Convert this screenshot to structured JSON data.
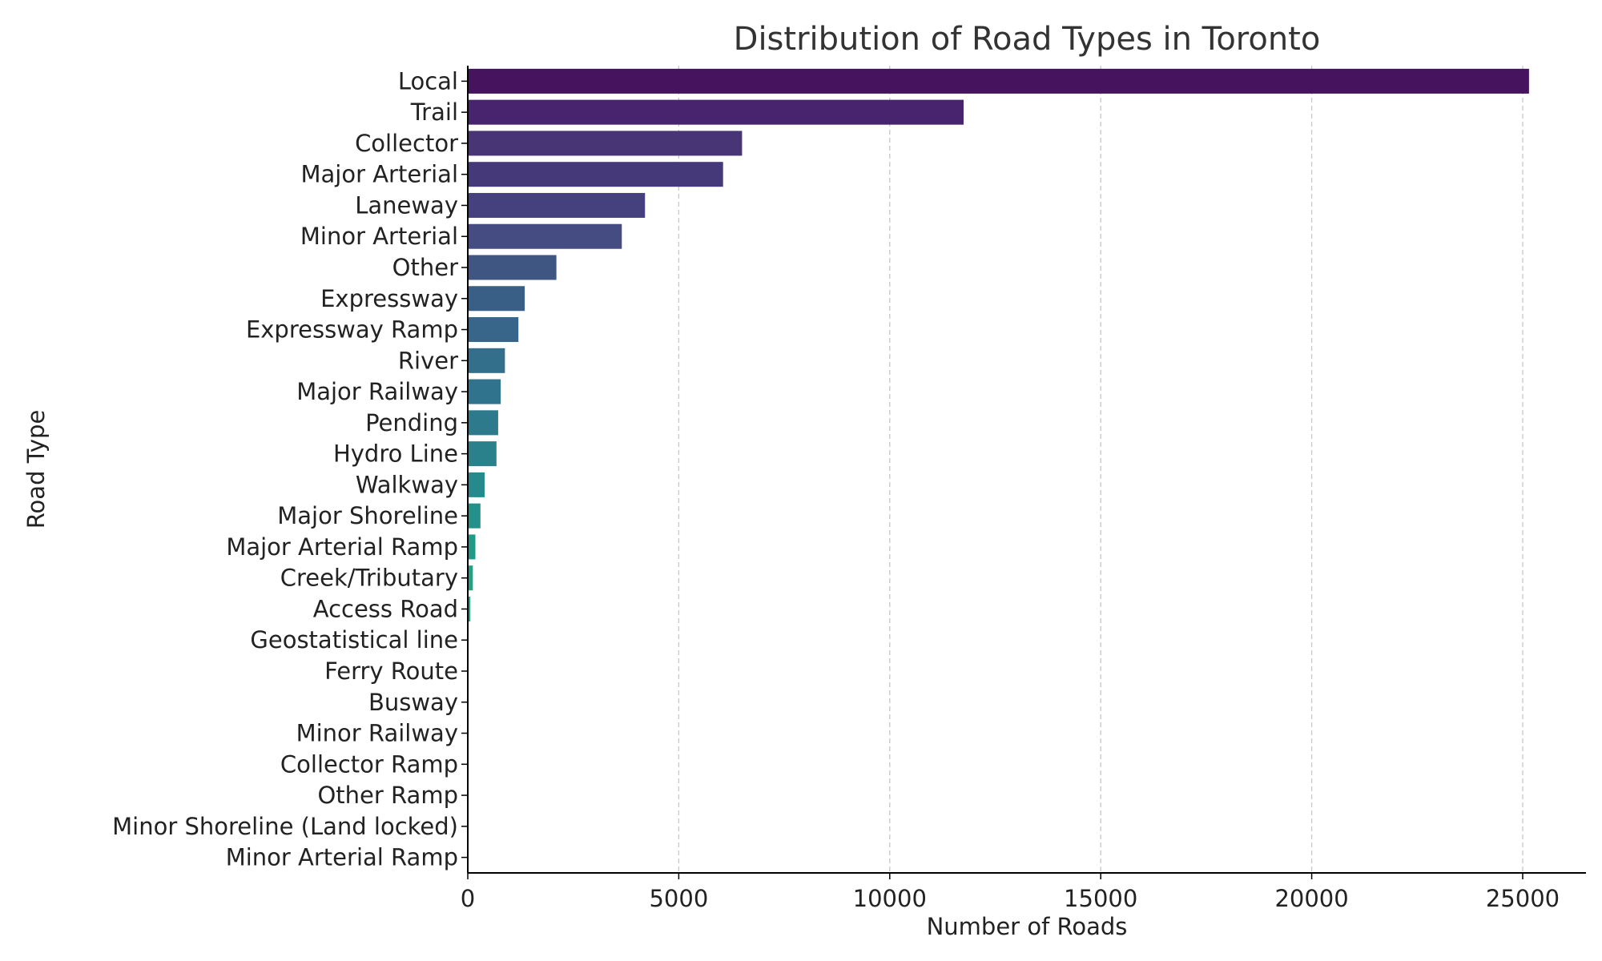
{
  "chart_data": {
    "type": "bar",
    "orientation": "horizontal",
    "title": "Distribution of Road Types in Toronto",
    "xlabel": "Number of Roads",
    "ylabel": "Road Type",
    "xlim": [
      0,
      26500
    ],
    "xticks": [
      0,
      5000,
      10000,
      15000,
      20000,
      25000
    ],
    "grid": "x-dashed",
    "palette": "viridis",
    "categories": [
      "Local",
      "Trail",
      "Collector",
      "Major Arterial",
      "Laneway",
      "Minor Arterial",
      "Other",
      "Expressway",
      "Expressway Ramp",
      "River",
      "Major Railway",
      "Pending",
      "Hydro Line",
      "Walkway",
      "Major Shoreline",
      "Major Arterial Ramp",
      "Creek/Tributary",
      "Access Road",
      "Geostatistical line",
      "Ferry Route",
      "Busway",
      "Minor Railway",
      "Collector Ramp",
      "Other Ramp",
      "Minor Shoreline (Land locked)",
      "Minor Arterial Ramp"
    ],
    "values": [
      25150,
      11750,
      6500,
      6050,
      4200,
      3650,
      2100,
      1350,
      1200,
      880,
      780,
      720,
      680,
      400,
      300,
      180,
      120,
      60,
      8,
      6,
      5,
      4,
      3,
      3,
      2,
      1
    ],
    "colors": [
      "#46145e",
      "#47246d",
      "#473575",
      "#45397a",
      "#45417f",
      "#444c82",
      "#3f5683",
      "#3a5f87",
      "#37668a",
      "#336e8b",
      "#30738c",
      "#2d7a8c",
      "#2a818c",
      "#26898b",
      "#23918a",
      "#219989",
      "#21a186",
      "#22a885",
      "#27b281",
      "#30b97c",
      "#3bc077",
      "#4ac76f",
      "#5acd66",
      "#6ad25c",
      "#7dd84f",
      "#90dc43"
    ]
  }
}
